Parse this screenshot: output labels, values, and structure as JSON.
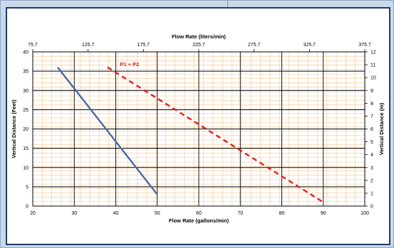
{
  "chart_data": {
    "type": "line",
    "title": "",
    "top_axis": {
      "label": "Flow Rate (liters/min)",
      "ticks": [
        "75.7",
        "125.7",
        "175.7",
        "225.7",
        "275.7",
        "325.7",
        "375.7"
      ]
    },
    "x_axis": {
      "label": "Flow Rate (gallons/min)",
      "range": [
        20,
        100
      ],
      "ticks": [
        20,
        30,
        40,
        50,
        60,
        70,
        80,
        90,
        100
      ]
    },
    "y_left": {
      "label": "Vertical Distance (Feet)",
      "range": [
        0,
        40
      ],
      "ticks": [
        0,
        5,
        10,
        15,
        20,
        25,
        30,
        35,
        40
      ]
    },
    "y_right": {
      "label": "Vertical Distance (m)",
      "range": [
        0,
        12
      ],
      "ticks": [
        0,
        1,
        2,
        3,
        4,
        5,
        6,
        7,
        8,
        9,
        10,
        11,
        12
      ]
    },
    "grid": true,
    "series": [
      {
        "name": "",
        "color": "#4a6aa5",
        "style": "solid",
        "x": [
          26,
          50
        ],
        "y": [
          36,
          3
        ]
      },
      {
        "name": "P1 + P2",
        "color": "#e0201f",
        "style": "dashed",
        "x": [
          38,
          90
        ],
        "y": [
          36,
          1
        ]
      }
    ],
    "annotations": [
      {
        "text": "P1 + P2",
        "color": "#e0201f"
      }
    ]
  }
}
